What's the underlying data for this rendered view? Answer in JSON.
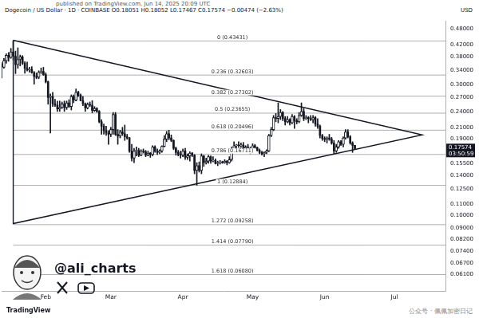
{
  "chart_data": {
    "type": "candlestick",
    "title": "Dogecoin / US Dollar · 1D · COINBASE  O0.18051 H0.18052 L0.17467 C0.17574 −0.00474 (−2.63%)",
    "subtitle": "published on TradingView.com, Jun 14, 2025 20:09 UTC",
    "ylabel": "USD",
    "color": "#131722",
    "log": "y",
    "grid": false,
    "ylim": [
      0.053,
      0.515
    ],
    "yticks": [
      {
        "value": 0.48,
        "label": "0.48000"
      },
      {
        "value": 0.42,
        "label": "0.42000"
      },
      {
        "value": 0.38,
        "label": "0.38000"
      },
      {
        "value": 0.34,
        "label": "0.34000"
      },
      {
        "value": 0.3,
        "label": "0.30000"
      },
      {
        "value": 0.27,
        "label": "0.27000"
      },
      {
        "value": 0.24,
        "label": "0.24000"
      },
      {
        "value": 0.21,
        "label": "0.21000"
      },
      {
        "value": 0.19,
        "label": "0.19000"
      },
      {
        "value": 0.155,
        "label": "0.15500"
      },
      {
        "value": 0.14,
        "label": "0.14000"
      },
      {
        "value": 0.125,
        "label": "0.12500"
      },
      {
        "value": 0.11,
        "label": "0.11000"
      },
      {
        "value": 0.1,
        "label": "0.10000"
      },
      {
        "value": 0.09,
        "label": "0.09000"
      },
      {
        "value": 0.082,
        "label": "0.08200"
      },
      {
        "value": 0.074,
        "label": "0.07400"
      },
      {
        "value": 0.067,
        "label": "0.06700"
      },
      {
        "value": 0.061,
        "label": "0.06100"
      }
    ],
    "categories": [
      null,
      null,
      null,
      null,
      null,
      null,
      null,
      null,
      null,
      null,
      null,
      null,
      null,
      null,
      null,
      null,
      null,
      null,
      null,
      "Feb",
      null,
      null,
      null,
      null,
      null,
      null,
      null,
      null,
      null,
      null,
      null,
      null,
      null,
      null,
      null,
      null,
      null,
      null,
      null,
      null,
      null,
      null,
      null,
      null,
      null,
      null,
      null,
      "Mar",
      null,
      null,
      null,
      null,
      null,
      null,
      null,
      null,
      null,
      null,
      null,
      null,
      null,
      null,
      null,
      null,
      null,
      null,
      null,
      null,
      null,
      null,
      null,
      null,
      null,
      null,
      null,
      null,
      null,
      null,
      "Apr",
      null,
      null,
      null,
      null,
      null,
      null,
      null,
      null,
      null,
      null,
      null,
      null,
      null,
      null,
      null,
      null,
      null,
      null,
      null,
      null,
      null,
      null,
      null,
      null,
      null,
      null,
      null,
      null,
      null,
      "May",
      null,
      null,
      null,
      null,
      null,
      null,
      null,
      null,
      null,
      null,
      null,
      null,
      null,
      null,
      null,
      null,
      null,
      null,
      null,
      null,
      null,
      null,
      null,
      null,
      null,
      null,
      null,
      null,
      null,
      null,
      "Jun",
      null,
      null,
      null,
      null,
      null,
      null,
      null,
      null,
      null,
      null,
      null,
      null,
      null,
      null,
      null,
      null,
      null,
      null,
      null,
      null,
      null,
      null,
      null,
      null,
      null,
      null,
      null,
      null,
      null,
      "Jul",
      null,
      null,
      null,
      null,
      null,
      null,
      null,
      null,
      null,
      null,
      null,
      null,
      null,
      null,
      null,
      null,
      null,
      null,
      null,
      null,
      null,
      null
    ],
    "values": [
      [
        0.358,
        0.362,
        0.318,
        0.348
      ],
      [
        0.348,
        0.375,
        0.345,
        0.368
      ],
      [
        0.368,
        0.39,
        0.36,
        0.385
      ],
      [
        0.385,
        0.394,
        0.366,
        0.378
      ],
      [
        0.378,
        0.408,
        0.375,
        0.396
      ],
      [
        0.396,
        0.434,
        0.37,
        0.382
      ],
      [
        0.382,
        0.399,
        0.33,
        0.356
      ],
      [
        0.356,
        0.41,
        0.345,
        0.372
      ],
      [
        0.372,
        0.386,
        0.352,
        0.38
      ],
      [
        0.38,
        0.384,
        0.356,
        0.36
      ],
      [
        0.36,
        0.365,
        0.331,
        0.345
      ],
      [
        0.345,
        0.364,
        0.337,
        0.34
      ],
      [
        0.34,
        0.348,
        0.334,
        0.342
      ],
      [
        0.342,
        0.35,
        0.331,
        0.333
      ],
      [
        0.333,
        0.336,
        0.302,
        0.322
      ],
      [
        0.322,
        0.332,
        0.316,
        0.32
      ],
      [
        0.32,
        0.338,
        0.316,
        0.334
      ],
      [
        0.334,
        0.346,
        0.33,
        0.336
      ],
      [
        0.336,
        0.348,
        0.325,
        0.327
      ],
      [
        0.327,
        0.332,
        0.305,
        0.308
      ],
      [
        0.308,
        0.31,
        0.255,
        0.27
      ],
      [
        0.27,
        0.278,
        0.2,
        0.272
      ],
      [
        0.272,
        0.282,
        0.25,
        0.256
      ],
      [
        0.256,
        0.266,
        0.25,
        0.253
      ],
      [
        0.253,
        0.262,
        0.24,
        0.245
      ],
      [
        0.245,
        0.262,
        0.24,
        0.248
      ],
      [
        0.248,
        0.26,
        0.246,
        0.256
      ],
      [
        0.256,
        0.262,
        0.24,
        0.248
      ],
      [
        0.248,
        0.262,
        0.244,
        0.258
      ],
      [
        0.258,
        0.265,
        0.248,
        0.25
      ],
      [
        0.25,
        0.276,
        0.243,
        0.272
      ],
      [
        0.272,
        0.276,
        0.258,
        0.264
      ],
      [
        0.264,
        0.29,
        0.262,
        0.282
      ],
      [
        0.282,
        0.285,
        0.272,
        0.275
      ],
      [
        0.275,
        0.278,
        0.262,
        0.263
      ],
      [
        0.263,
        0.272,
        0.252,
        0.256
      ],
      [
        0.256,
        0.258,
        0.24,
        0.247
      ],
      [
        0.247,
        0.258,
        0.245,
        0.255
      ],
      [
        0.255,
        0.26,
        0.25,
        0.253
      ],
      [
        0.253,
        0.263,
        0.237,
        0.242
      ],
      [
        0.242,
        0.25,
        0.24,
        0.246
      ],
      [
        0.246,
        0.248,
        0.238,
        0.24
      ],
      [
        0.24,
        0.242,
        0.218,
        0.22
      ],
      [
        0.22,
        0.224,
        0.198,
        0.212
      ],
      [
        0.212,
        0.216,
        0.198,
        0.204
      ],
      [
        0.204,
        0.212,
        0.196,
        0.2
      ],
      [
        0.2,
        0.204,
        0.182,
        0.198
      ],
      [
        0.198,
        0.21,
        0.194,
        0.206
      ],
      [
        0.206,
        0.238,
        0.198,
        0.234
      ],
      [
        0.234,
        0.238,
        0.196,
        0.198
      ],
      [
        0.198,
        0.206,
        0.182,
        0.195
      ],
      [
        0.195,
        0.205,
        0.192,
        0.202
      ],
      [
        0.202,
        0.21,
        0.196,
        0.199
      ],
      [
        0.199,
        0.214,
        0.188,
        0.194
      ],
      [
        0.194,
        0.198,
        0.19,
        0.192
      ],
      [
        0.192,
        0.193,
        0.17,
        0.172
      ],
      [
        0.172,
        0.182,
        0.158,
        0.162
      ],
      [
        0.162,
        0.176,
        0.156,
        0.172
      ],
      [
        0.172,
        0.178,
        0.165,
        0.173
      ],
      [
        0.173,
        0.176,
        0.164,
        0.166
      ],
      [
        0.166,
        0.174,
        0.165,
        0.172
      ],
      [
        0.172,
        0.175,
        0.169,
        0.171
      ],
      [
        0.171,
        0.173,
        0.164,
        0.166
      ],
      [
        0.166,
        0.172,
        0.165,
        0.169
      ],
      [
        0.169,
        0.17,
        0.163,
        0.167
      ],
      [
        0.167,
        0.18,
        0.165,
        0.178
      ],
      [
        0.178,
        0.18,
        0.17,
        0.172
      ],
      [
        0.172,
        0.175,
        0.167,
        0.17
      ],
      [
        0.17,
        0.174,
        0.168,
        0.172
      ],
      [
        0.172,
        0.18,
        0.17,
        0.179
      ],
      [
        0.179,
        0.196,
        0.178,
        0.19
      ],
      [
        0.19,
        0.203,
        0.186,
        0.199
      ],
      [
        0.199,
        0.205,
        0.189,
        0.192
      ],
      [
        0.192,
        0.197,
        0.186,
        0.188
      ],
      [
        0.188,
        0.189,
        0.174,
        0.176
      ],
      [
        0.176,
        0.178,
        0.166,
        0.17
      ],
      [
        0.17,
        0.173,
        0.165,
        0.167
      ],
      [
        0.167,
        0.172,
        0.162,
        0.166
      ],
      [
        0.166,
        0.175,
        0.164,
        0.172
      ],
      [
        0.172,
        0.176,
        0.16,
        0.163
      ],
      [
        0.163,
        0.168,
        0.16,
        0.165
      ],
      [
        0.165,
        0.171,
        0.158,
        0.169
      ],
      [
        0.169,
        0.17,
        0.164,
        0.166
      ],
      [
        0.166,
        0.167,
        0.142,
        0.146
      ],
      [
        0.146,
        0.156,
        0.129,
        0.152
      ],
      [
        0.152,
        0.157,
        0.144,
        0.146
      ],
      [
        0.146,
        0.168,
        0.142,
        0.165
      ],
      [
        0.165,
        0.166,
        0.151,
        0.156
      ],
      [
        0.156,
        0.162,
        0.154,
        0.158
      ],
      [
        0.158,
        0.166,
        0.155,
        0.164
      ],
      [
        0.164,
        0.165,
        0.155,
        0.158
      ],
      [
        0.158,
        0.164,
        0.157,
        0.159
      ],
      [
        0.159,
        0.161,
        0.154,
        0.155
      ],
      [
        0.155,
        0.158,
        0.152,
        0.156
      ],
      [
        0.156,
        0.159,
        0.154,
        0.157
      ],
      [
        0.157,
        0.158,
        0.155,
        0.156
      ],
      [
        0.156,
        0.16,
        0.155,
        0.158
      ],
      [
        0.158,
        0.159,
        0.153,
        0.156
      ],
      [
        0.156,
        0.164,
        0.155,
        0.16
      ],
      [
        0.16,
        0.178,
        0.158,
        0.176
      ],
      [
        0.176,
        0.186,
        0.175,
        0.18
      ],
      [
        0.18,
        0.182,
        0.173,
        0.181
      ],
      [
        0.181,
        0.186,
        0.177,
        0.18
      ],
      [
        0.18,
        0.184,
        0.177,
        0.181
      ],
      [
        0.181,
        0.185,
        0.174,
        0.176
      ],
      [
        0.176,
        0.18,
        0.171,
        0.178
      ],
      [
        0.178,
        0.182,
        0.174,
        0.175
      ],
      [
        0.175,
        0.178,
        0.168,
        0.176
      ],
      [
        0.176,
        0.183,
        0.175,
        0.18
      ],
      [
        0.18,
        0.182,
        0.176,
        0.177
      ],
      [
        0.177,
        0.178,
        0.172,
        0.173
      ],
      [
        0.173,
        0.175,
        0.168,
        0.17
      ],
      [
        0.17,
        0.172,
        0.166,
        0.168
      ],
      [
        0.168,
        0.171,
        0.164,
        0.17
      ],
      [
        0.17,
        0.174,
        0.168,
        0.172
      ],
      [
        0.172,
        0.198,
        0.171,
        0.196
      ],
      [
        0.196,
        0.21,
        0.194,
        0.206
      ],
      [
        0.206,
        0.232,
        0.204,
        0.228
      ],
      [
        0.228,
        0.236,
        0.22,
        0.226
      ],
      [
        0.226,
        0.258,
        0.218,
        0.23
      ],
      [
        0.23,
        0.244,
        0.224,
        0.238
      ],
      [
        0.238,
        0.24,
        0.222,
        0.226
      ],
      [
        0.226,
        0.23,
        0.214,
        0.22
      ],
      [
        0.22,
        0.23,
        0.218,
        0.224
      ],
      [
        0.224,
        0.226,
        0.214,
        0.218
      ],
      [
        0.218,
        0.234,
        0.216,
        0.23
      ],
      [
        0.23,
        0.232,
        0.208,
        0.222
      ],
      [
        0.222,
        0.226,
        0.216,
        0.22
      ],
      [
        0.22,
        0.238,
        0.218,
        0.232
      ],
      [
        0.232,
        0.258,
        0.23,
        0.24
      ],
      [
        0.24,
        0.246,
        0.222,
        0.226
      ],
      [
        0.226,
        0.232,
        0.224,
        0.228
      ],
      [
        0.228,
        0.23,
        0.218,
        0.226
      ],
      [
        0.226,
        0.232,
        0.222,
        0.224
      ],
      [
        0.224,
        0.232,
        0.218,
        0.228
      ],
      [
        0.228,
        0.23,
        0.212,
        0.216
      ],
      [
        0.216,
        0.226,
        0.208,
        0.212
      ],
      [
        0.212,
        0.214,
        0.192,
        0.196
      ],
      [
        0.196,
        0.198,
        0.188,
        0.191
      ],
      [
        0.191,
        0.194,
        0.186,
        0.19
      ],
      [
        0.19,
        0.194,
        0.184,
        0.192
      ],
      [
        0.192,
        0.198,
        0.188,
        0.19
      ],
      [
        0.19,
        0.193,
        0.182,
        0.184
      ],
      [
        0.184,
        0.188,
        0.168,
        0.172
      ],
      [
        0.172,
        0.182,
        0.17,
        0.178
      ],
      [
        0.178,
        0.188,
        0.176,
        0.186
      ],
      [
        0.186,
        0.188,
        0.18,
        0.182
      ],
      [
        0.182,
        0.194,
        0.178,
        0.192
      ],
      [
        0.192,
        0.206,
        0.19,
        0.202
      ],
      [
        0.202,
        0.206,
        0.192,
        0.194
      ],
      [
        0.194,
        0.196,
        0.182,
        0.184
      ],
      [
        0.184,
        0.186,
        0.17,
        0.1805
      ],
      [
        0.18051,
        0.18052,
        0.17467,
        0.17574
      ],
      null,
      null,
      null,
      null,
      null,
      null,
      null,
      null,
      null,
      null,
      null,
      null,
      null,
      null,
      null,
      null,
      null,
      null,
      null,
      null,
      null,
      null,
      null,
      null,
      null,
      null,
      null,
      null,
      null,
      null,
      null,
      null,
      null,
      null,
      null,
      null,
      null,
      null,
      null
    ],
    "triangle": {
      "x": [
        5,
        181,
        5,
        5
      ],
      "y": [
        0.437,
        0.197,
        0.0934,
        0.437
      ]
    },
    "fib_levels": [
      {
        "value": 0.43431,
        "label": "0 (0.43431)"
      },
      {
        "value": 0.32603,
        "label": "0.236 (0.32603)"
      },
      {
        "value": 0.27302,
        "label": "0.382 (0.27302)"
      },
      {
        "value": 0.23655,
        "label": "0.5 (0.23655)"
      },
      {
        "value": 0.20496,
        "label": "0.618 (0.20496)"
      },
      {
        "value": 0.16711,
        "label": "0.786 (0.16711)"
      },
      {
        "value": 0.12884,
        "label": "1 (0.12884)"
      },
      {
        "value": 0.09258,
        "label": "1.272 (0.09258)"
      },
      {
        "value": 0.0779,
        "label": "1.414 (0.07790)"
      },
      {
        "value": 0.0608,
        "label": "1.618 (0.06080)"
      }
    ],
    "last_price": {
      "value": 0.17574,
      "label": "0.17574",
      "countdown": "03:50:59"
    },
    "watermark": {
      "author": "@ali_charts",
      "footer": "TradingView",
      "source": "公众号 · 佩佩加密日记"
    }
  }
}
